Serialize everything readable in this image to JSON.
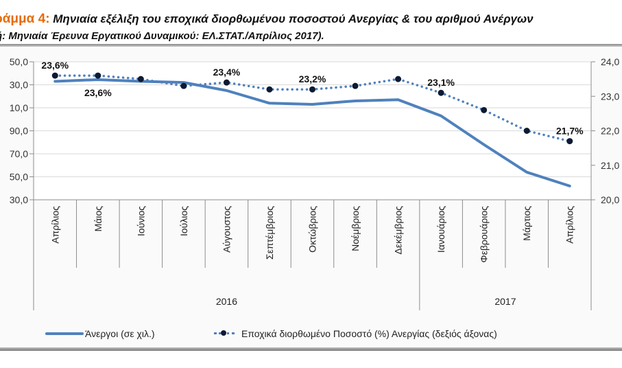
{
  "title": {
    "prefix": "ράμμα 4:",
    "line1": " Μηνιαία εξέλιξη του  εποχικά διορθωμένου ποσοστού Ανεργίας & του αριθμού Ανέργων",
    "line2": "ή: Μηνιαία Έρευνα Εργατικού Δυναμικού: ΕΛ.ΣΤΑΤ./Απρίλιος 2017)."
  },
  "colors": {
    "title_accent": "#e46c0a",
    "unemployed_line": "#4f81bd",
    "rate_line": "#4f81bd",
    "rate_marker": "#0d1a33",
    "gridline": "#d9d9d9",
    "axis": "#8c8c8c"
  },
  "chart_data": {
    "type": "line",
    "categories": [
      "Απρίλιος",
      "Μάιος",
      "Ιούνιος",
      "Ιούλιος",
      "Αύγουστος",
      "Σεπτέμβριος",
      "Οκτώβριος",
      "Νοέμβριος",
      "Δεκέμβριος",
      "Ιανουάριος",
      "Φεβρουάριος",
      "Μάρτιος",
      "Απρίλιος"
    ],
    "category_groups": [
      {
        "label": "2016",
        "start": 0,
        "end": 8
      },
      {
        "label": "2017",
        "start": 9,
        "end": 12
      }
    ],
    "series": [
      {
        "name": "Άνεργοι (σε χιλ.)",
        "axis": "left",
        "style": "solid",
        "values": [
          1133,
          1134.5,
          1133,
          1132,
          1125,
          1114,
          1113,
          1116,
          1117,
          1103,
          1078,
          1054,
          1042
        ]
      },
      {
        "name": "Εποχικά διορθωμένο Ποσοστό (%) Ανεργίας (δεξιός άξονας)",
        "axis": "right",
        "style": "dotted-markers",
        "values": [
          23.6,
          23.6,
          23.5,
          23.3,
          23.4,
          23.2,
          23.2,
          23.3,
          23.5,
          23.1,
          22.6,
          22.0,
          21.7
        ]
      }
    ],
    "data_labels": [
      {
        "series": 1,
        "index": 0,
        "text": "23,6%",
        "position": "above"
      },
      {
        "series": 1,
        "index": 1,
        "text": "23,6%",
        "position": "below"
      },
      {
        "series": 1,
        "index": 4,
        "text": "23,4%",
        "position": "above"
      },
      {
        "series": 1,
        "index": 6,
        "text": "23,2%",
        "position": "above"
      },
      {
        "series": 1,
        "index": 9,
        "text": "23,1%",
        "position": "above"
      },
      {
        "series": 1,
        "index": 12,
        "text": "21,7%",
        "position": "above"
      }
    ],
    "left_axis": {
      "ylim": [
        1030,
        1150
      ],
      "ticks": [
        1150,
        1130,
        1110,
        1090,
        1070,
        1050,
        1030
      ],
      "tick_labels": [
        "50,0",
        "30,0",
        "10,0",
        "90,0",
        "70,0",
        "50,0",
        "30,0"
      ]
    },
    "right_axis": {
      "ylim": [
        20,
        24
      ],
      "ticks": [
        24,
        23,
        22,
        21,
        20
      ],
      "tick_labels": [
        "24,0",
        "23,0",
        "22,0",
        "21,0",
        "20,0"
      ]
    },
    "grid": true,
    "legend_position": "bottom",
    "title": "Μηνιαία εξέλιξη του εποχικά διορθωμένου ποσοστού Ανεργίας & του αριθμού Ανέργων"
  }
}
